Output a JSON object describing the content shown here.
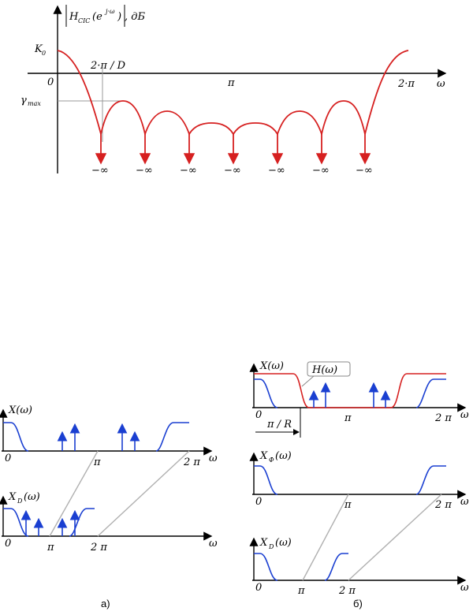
{
  "top_plot": {
    "ylabel_H": "H",
    "ylabel_sub": "CIC",
    "ylabel_arg": "(e",
    "ylabel_exp": "j·ω",
    "ylabel_close": ")",
    "ylabel_unit": ",   дБ",
    "k0_main": "K",
    "k0_sub": "0",
    "origin": "0",
    "tick_first_zero": "2·π / D",
    "tick_pi": "π",
    "tick_2pi": "2·π",
    "gamma_main": "γ",
    "gamma_sub": "max",
    "xaxis": "ω",
    "minus_inf": "−∞",
    "zero_count": 7,
    "colors": {
      "response": "#d62020",
      "axis": "#000000",
      "guide": "#999999"
    }
  },
  "panel_a": {
    "x_label": "X(ω)",
    "xd_main": "X",
    "xd_sub": "D",
    "xd_arg": "(ω)",
    "origin": "0",
    "tick_pi": "π",
    "tick_2pi": "2 π",
    "xaxis": "ω",
    "caption": "а)"
  },
  "panel_b": {
    "x_label": "X(ω)",
    "h_label": "H(ω)",
    "xf_main": "X",
    "xf_sub": "Ф",
    "xf_arg": "(ω)",
    "xd_main": "X",
    "xd_sub": "D",
    "xd_arg": "(ω)",
    "origin": "0",
    "tick_pi": "π",
    "tick_2pi": "2 π",
    "tick_pi_r": "π / R",
    "xaxis": "ω",
    "caption": "б)"
  },
  "colors": {
    "spectrum": "#1a3fd1",
    "filter": "#d62020",
    "link": "#b0b0b0"
  }
}
